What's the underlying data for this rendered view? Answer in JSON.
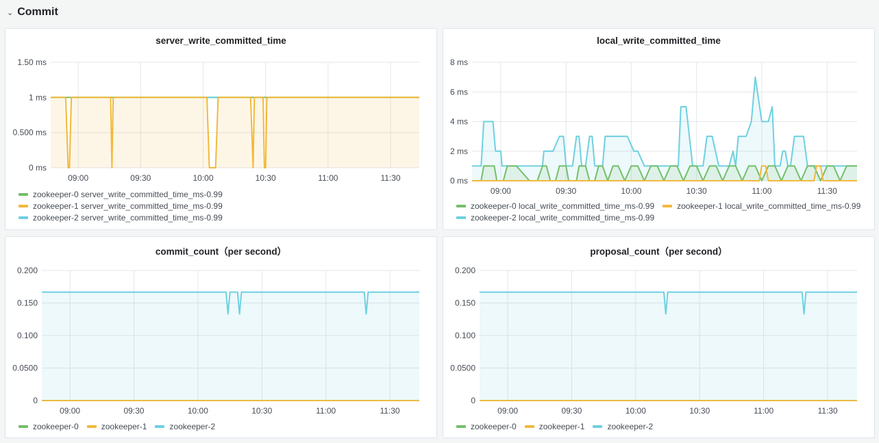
{
  "row": {
    "title": "Commit",
    "chevron": "⌄"
  },
  "colors": {
    "green": "#73bf69",
    "yellow": "#f2b93b",
    "cyan": "#6ed0e0",
    "grid": "#e4e6ea"
  },
  "panels": [
    {
      "title": "server_write_committed_time",
      "legend": [
        {
          "name": "zookeeper-0 server_write_committed_time_ms-0.99",
          "color": "#73bf69"
        },
        {
          "name": "zookeeper-1 server_write_committed_time_ms-0.99",
          "color": "#f2b93b"
        },
        {
          "name": "zookeeper-2 server_write_committed_time_ms-0.99",
          "color": "#6ed0e0"
        }
      ]
    },
    {
      "title": "local_write_committed_time",
      "legend": [
        {
          "name": "zookeeper-0 local_write_committed_time_ms-0.99",
          "color": "#73bf69"
        },
        {
          "name": "zookeeper-1 local_write_committed_time_ms-0.99",
          "color": "#f2b93b"
        },
        {
          "name": "zookeeper-2 local_write_committed_time_ms-0.99",
          "color": "#6ed0e0"
        }
      ]
    },
    {
      "title": "commit_count（per second）",
      "legend": [
        {
          "name": "zookeeper-0",
          "color": "#73bf69"
        },
        {
          "name": "zookeeper-1",
          "color": "#f2b93b"
        },
        {
          "name": "zookeeper-2",
          "color": "#6ed0e0"
        }
      ]
    },
    {
      "title": "proposal_count（per second）",
      "legend": [
        {
          "name": "zookeeper-0",
          "color": "#73bf69"
        },
        {
          "name": "zookeeper-1",
          "color": "#f2b93b"
        },
        {
          "name": "zookeeper-2",
          "color": "#6ed0e0"
        }
      ]
    }
  ],
  "chart_data": [
    {
      "type": "line",
      "title": "server_write_committed_time",
      "x_ticks": [
        "09:00",
        "09:30",
        "10:00",
        "10:30",
        "11:00",
        "11:30"
      ],
      "y_ticks": [
        "0 ms",
        "0.500 ms",
        "1 ms",
        "1.50 ms"
      ],
      "ylim": [
        0,
        1.5
      ],
      "xlim": [
        8.78,
        11.73
      ],
      "series": [
        {
          "name": "zookeeper-0 server_write_committed_time_ms-0.99",
          "color": "#73bf69",
          "fill": false,
          "x": [
            8.78,
            11.73
          ],
          "y": [
            1,
            1
          ]
        },
        {
          "name": "zookeeper-1 server_write_committed_time_ms-0.99",
          "color": "#f2b93b",
          "fill": true,
          "x": [
            8.78,
            8.9,
            8.92,
            8.93,
            8.945,
            9.26,
            9.27,
            9.28,
            10.03,
            10.05,
            10.1,
            10.12,
            10.38,
            10.4,
            10.41,
            10.42,
            10.48,
            10.49,
            10.5,
            10.51,
            11.73
          ],
          "y": [
            1,
            1,
            0,
            0,
            1,
            1,
            0,
            1,
            1,
            0,
            0,
            1,
            1,
            0,
            1,
            1,
            1,
            0,
            0,
            1,
            1
          ]
        },
        {
          "name": "zookeeper-2 server_write_committed_time_ms-0.99",
          "color": "#6ed0e0",
          "fill": false,
          "x": [
            10.03,
            10.12
          ],
          "y": [
            1,
            1
          ]
        }
      ]
    },
    {
      "type": "area",
      "title": "local_write_committed_time",
      "x_ticks": [
        "09:00",
        "09:30",
        "10:00",
        "10:30",
        "11:00",
        "11:30"
      ],
      "y_ticks": [
        "0 ms",
        "2 ms",
        "4 ms",
        "6 ms",
        "8 ms"
      ],
      "ylim": [
        0,
        8
      ],
      "xlim": [
        8.78,
        11.73
      ],
      "series": [
        {
          "name": "zookeeper-2 local_write_committed_time_ms-0.99",
          "color": "#6ed0e0",
          "fill": true,
          "x": [
            8.78,
            8.85,
            8.87,
            8.94,
            8.96,
            9.0,
            9.01,
            9.03,
            9.05,
            9.08,
            9.12,
            9.22,
            9.25,
            9.32,
            9.33,
            9.37,
            9.4,
            9.45,
            9.48,
            9.5,
            9.52,
            9.55,
            9.58,
            9.6,
            9.62,
            9.65,
            9.68,
            9.7,
            9.72,
            9.78,
            9.8,
            9.85,
            9.9,
            9.97,
            10.02,
            10.05,
            10.1,
            10.15,
            10.2,
            10.28,
            10.32,
            10.36,
            10.38,
            10.42,
            10.47,
            10.55,
            10.58,
            10.6,
            10.62,
            10.67,
            10.75,
            10.78,
            10.8,
            10.82,
            10.85,
            10.88,
            10.92,
            10.95,
            11.0,
            11.02,
            11.05,
            11.08,
            11.1,
            11.12,
            11.14,
            11.16,
            11.18,
            11.2,
            11.22,
            11.25,
            11.28,
            11.3,
            11.32,
            11.35,
            11.38,
            11.42,
            11.45,
            11.5,
            11.55,
            11.6,
            11.65,
            11.73
          ],
          "y": [
            1,
            1,
            4,
            4,
            2,
            2,
            1,
            1,
            1,
            1,
            1,
            1,
            1,
            1,
            2,
            2,
            2,
            3,
            3,
            1,
            1,
            1,
            3,
            3,
            1,
            1,
            3,
            3,
            1,
            1,
            3,
            3,
            3,
            3,
            2,
            2,
            1,
            1,
            1,
            1,
            1,
            1,
            5,
            5,
            1,
            1,
            3,
            3,
            3,
            1,
            1,
            2,
            1,
            3,
            3,
            3,
            4,
            7,
            4,
            4,
            4,
            5,
            1,
            1,
            1,
            2,
            2,
            1,
            1,
            3,
            3,
            3,
            3,
            1,
            1,
            1,
            1,
            1,
            1,
            1,
            1,
            1
          ]
        },
        {
          "name": "zookeeper-0 local_write_committed_time_ms-0.99",
          "color": "#73bf69",
          "fill": true,
          "x": [
            8.78,
            8.85,
            8.87,
            8.95,
            8.97,
            9.0,
            9.02,
            9.05,
            9.07,
            9.12,
            9.22,
            9.28,
            9.32,
            9.35,
            9.38,
            9.42,
            9.45,
            9.5,
            9.52,
            9.58,
            9.6,
            9.65,
            9.68,
            9.72,
            9.75,
            9.78,
            9.82,
            9.86,
            9.9,
            9.95,
            10.0,
            10.05,
            10.1,
            10.15,
            10.2,
            10.25,
            10.3,
            10.35,
            10.4,
            10.45,
            10.5,
            10.55,
            10.6,
            10.65,
            10.7,
            10.75,
            10.8,
            10.85,
            10.9,
            10.95,
            11.0,
            11.05,
            11.1,
            11.15,
            11.2,
            11.25,
            11.3,
            11.35,
            11.4,
            11.45,
            11.5,
            11.55,
            11.6,
            11.65,
            11.73
          ],
          "y": [
            0,
            0,
            1,
            1,
            0,
            0,
            0,
            1,
            1,
            1,
            0,
            0,
            1,
            1,
            0,
            0,
            1,
            1,
            0,
            0,
            1,
            1,
            0,
            0,
            1,
            1,
            0,
            1,
            1,
            0,
            1,
            1,
            0,
            1,
            1,
            0,
            1,
            1,
            0,
            1,
            1,
            0,
            1,
            1,
            0,
            1,
            1,
            0,
            1,
            1,
            0,
            1,
            1,
            0,
            1,
            1,
            0,
            1,
            1,
            0,
            1,
            1,
            0,
            1,
            1
          ]
        },
        {
          "name": "zookeeper-1 local_write_committed_time_ms-0.99",
          "color": "#f2b93b",
          "fill": false,
          "x": [
            8.78,
            10.98,
            11.0,
            11.03,
            11.05,
            11.08,
            11.1,
            11.4,
            11.42,
            11.45,
            11.47,
            11.73
          ],
          "y": [
            0,
            0,
            1,
            1,
            0,
            0,
            0,
            0,
            1,
            1,
            0,
            0
          ]
        }
      ]
    },
    {
      "type": "area",
      "title": "commit_count（per second）",
      "x_ticks": [
        "09:00",
        "09:30",
        "10:00",
        "10:30",
        "11:00",
        "11:30"
      ],
      "y_ticks": [
        "0",
        "0.0500",
        "0.100",
        "0.150",
        "0.200"
      ],
      "ylim": [
        0,
        0.2
      ],
      "xlim": [
        8.78,
        11.73
      ],
      "series": [
        {
          "name": "zookeeper-0",
          "color": "#73bf69",
          "fill": false,
          "x": [
            8.78,
            11.73
          ],
          "y": [
            0,
            0
          ]
        },
        {
          "name": "zookeeper-1",
          "color": "#f2b93b",
          "fill": false,
          "x": [
            8.78,
            11.73
          ],
          "y": [
            0,
            0
          ]
        },
        {
          "name": "zookeeper-2",
          "color": "#6ed0e0",
          "fill": true,
          "x": [
            8.78,
            10.22,
            10.235,
            10.25,
            10.31,
            10.325,
            10.34,
            11.3,
            11.315,
            11.33,
            11.73
          ],
          "y": [
            0.1667,
            0.1667,
            0.133,
            0.1667,
            0.1667,
            0.133,
            0.1667,
            0.1667,
            0.133,
            0.1667,
            0.1667
          ]
        }
      ]
    },
    {
      "type": "area",
      "title": "proposal_count（per second）",
      "x_ticks": [
        "09:00",
        "09:30",
        "10:00",
        "10:30",
        "11:00",
        "11:30"
      ],
      "y_ticks": [
        "0",
        "0.0500",
        "0.100",
        "0.150",
        "0.200"
      ],
      "ylim": [
        0,
        0.2
      ],
      "xlim": [
        8.78,
        11.73
      ],
      "series": [
        {
          "name": "zookeeper-0",
          "color": "#73bf69",
          "fill": false,
          "x": [
            8.78,
            11.73
          ],
          "y": [
            0,
            0
          ]
        },
        {
          "name": "zookeeper-1",
          "color": "#f2b93b",
          "fill": false,
          "x": [
            8.78,
            11.73
          ],
          "y": [
            0,
            0
          ]
        },
        {
          "name": "zookeeper-2",
          "color": "#6ed0e0",
          "fill": true,
          "x": [
            8.78,
            10.22,
            10.235,
            10.25,
            11.3,
            11.315,
            11.33,
            11.73
          ],
          "y": [
            0.1667,
            0.1667,
            0.133,
            0.1667,
            0.1667,
            0.133,
            0.1667,
            0.1667
          ]
        }
      ]
    }
  ]
}
